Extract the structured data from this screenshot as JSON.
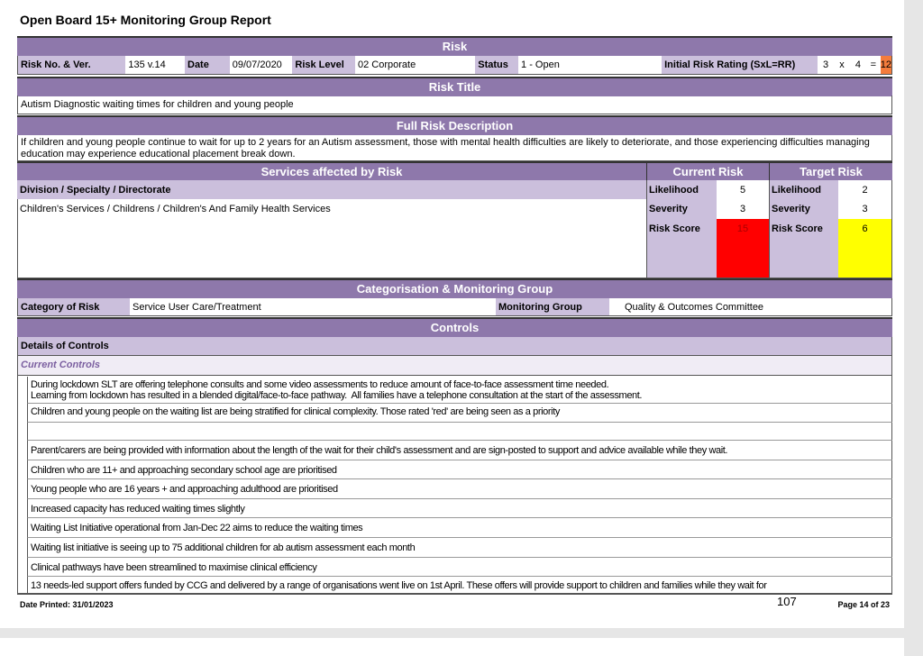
{
  "report_title": "Open Board 15+ Monitoring Group Report",
  "risk": {
    "header": "Risk",
    "risk_no_label": "Risk No. & Ver.",
    "risk_no": "135 v.14",
    "date_label": "Date",
    "date": "09/07/2020",
    "level_label": "Risk Level",
    "level": "02 Corporate",
    "status_label": "Status",
    "status": "1 - Open",
    "initial_label": "Initial Risk Rating (SxL=RR)",
    "s": "3",
    "x": "x",
    "l": "4",
    "eq": "=",
    "rr": "12",
    "rr_color": "#f47c3c"
  },
  "risk_title": {
    "header": "Risk Title",
    "text": "Autism Diagnostic waiting times for children and young people"
  },
  "description": {
    "header": "Full Risk Description",
    "text": "If children and young people continue to wait for up to 2 years for an Autism assessment, those with mental health difficulties are likely to deteriorate, and those experiencing difficulties managing education may experience educational placement break down."
  },
  "services": {
    "header": "Services affected by Risk",
    "division_label": "Division / Specialty / Directorate",
    "division": "Children's Services / Childrens / Children's And Family Health Services"
  },
  "current_risk": {
    "header": "Current Risk",
    "likelihood_label": "Likelihood",
    "likelihood": "5",
    "severity_label": "Severity",
    "severity": "3",
    "score_label": "Risk Score",
    "score": "15",
    "score_color": "#ff0000"
  },
  "target_risk": {
    "header": "Target Risk",
    "likelihood_label": "Likelihood",
    "likelihood": "2",
    "severity_label": "Severity",
    "severity": "3",
    "score_label": "Risk Score",
    "score": "6",
    "score_color": "#ffff00"
  },
  "categorisation": {
    "header": "Categorisation & Monitoring Group",
    "category_label": "Category of Risk",
    "category": "Service User Care/Treatment",
    "group_label": "Monitoring Group",
    "group": "Quality & Outcomes Committee"
  },
  "controls": {
    "header": "Controls",
    "details_label": "Details of Controls",
    "current_label": "Current Controls",
    "items": [
      "During lockdown SLT are offering telephone consults and some video assessments to reduce amount of face-to-face assessment time needed.\nLearning from lockdown has resulted in a blended digital/face-to-face pathway.  All families have a telephone consultation at the start of the assessment.",
      "Children and young people on the waiting list are being stratified for clinical complexity.  Those rated 'red' are being seen as a priority",
      "",
      "Parent/carers are being provided with information about the length of the wait for their child's assessment and are sign-posted to support and advice available while they wait.",
      "Children who are 11+ and approaching secondary school age are prioritised",
      "Young people who are 16 years + and approaching adulthood are prioritised",
      "Increased capacity has reduced waiting times slightly",
      "Waiting List Initiative operational from Jan-Dec 22 aims to reduce the waiting times",
      "Waiting list initiative is seeing up to 75 additional children for ab autism assessment each month",
      "Clinical pathways have been streamlined to maximise clinical efficiency",
      "13 needs-led support offers funded by CCG and delivered by a range of organisations went live on 1st April.  These offers will provide support to children and families while they wait for"
    ]
  },
  "footer": {
    "date_printed": "Date Printed: 31/01/2023",
    "page": "Page 14 of 23",
    "handwritten": "107"
  }
}
